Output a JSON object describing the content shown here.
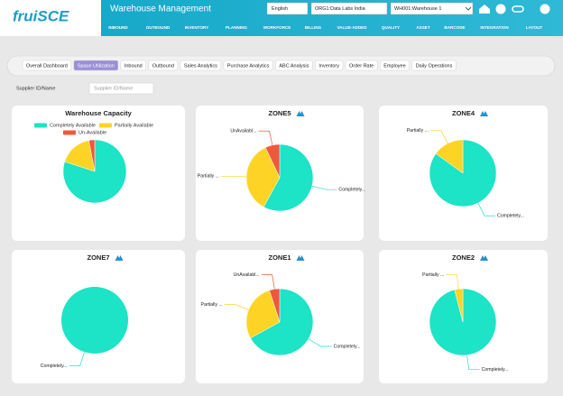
{
  "header": {
    "logo": "fruiSCE",
    "title": "Warehouse Management",
    "language": "English",
    "organization": "ORG1:Data Labs India",
    "warehouse": "WH001:Warehouse 1",
    "nav": [
      "INBOUND",
      "OUTBOUND",
      "INVENTORY",
      "PLANNING",
      "WORKFORCE",
      "BILLING",
      "VALUE-ADDED",
      "QUALITY",
      "ASSET",
      "BARCODE",
      "INTEGRATION",
      "LAYOUT"
    ]
  },
  "tabs": {
    "items": [
      "Overall Dashboard",
      "Space Utilization",
      "Inbound",
      "Outbound",
      "Sales Analytics",
      "Purchase Analytics",
      "ABC Analysis",
      "Inventory",
      "Order Rate",
      "Employee",
      "Daily Operations"
    ],
    "active": 1
  },
  "filter": {
    "label": "Supplier ID/Name",
    "placeholder": "Supplier ID/Name"
  },
  "panels": [
    {
      "type": "pie",
      "title": "Warehouse Capacity",
      "legend": true,
      "slices": [
        {
          "name": "Completely Available",
          "value": 80,
          "color": "#1de3c7"
        },
        {
          "name": "Partially Available",
          "value": 17,
          "color": "#fdd426"
        },
        {
          "name": "Un-Available",
          "value": 3,
          "color": "#f0583c"
        }
      ]
    },
    {
      "type": "pie",
      "title": "ZONE5",
      "legend": false,
      "slices": [
        {
          "name": "Completely...",
          "value": 58,
          "color": "#1de3c7"
        },
        {
          "name": "Partially ...",
          "value": 35,
          "color": "#fdd426"
        },
        {
          "name": "UnAvailabl...",
          "value": 7,
          "color": "#f0583c"
        }
      ]
    },
    {
      "type": "pie",
      "title": "ZONE4",
      "legend": false,
      "slices": [
        {
          "name": "Completely...",
          "value": 85,
          "color": "#1de3c7"
        },
        {
          "name": "Partially ...",
          "value": 15,
          "color": "#fdd426"
        }
      ]
    },
    {
      "type": "pie",
      "title": "ZONE7",
      "legend": false,
      "slices": [
        {
          "name": "Completely...",
          "value": 100,
          "color": "#1de3c7"
        }
      ]
    },
    {
      "type": "pie",
      "title": "ZONE1",
      "legend": false,
      "slices": [
        {
          "name": "Completely...",
          "value": 67,
          "color": "#1de3c7"
        },
        {
          "name": "Partially ...",
          "value": 28,
          "color": "#fdd426"
        },
        {
          "name": "UnAvailabl...",
          "value": 5,
          "color": "#f0583c"
        }
      ]
    },
    {
      "type": "pie",
      "title": "ZONE2",
      "legend": false,
      "slices": [
        {
          "name": "Completely...",
          "value": 96,
          "color": "#1de3c7"
        },
        {
          "name": "Partially ...",
          "value": 4,
          "color": "#fdd426"
        }
      ]
    }
  ]
}
